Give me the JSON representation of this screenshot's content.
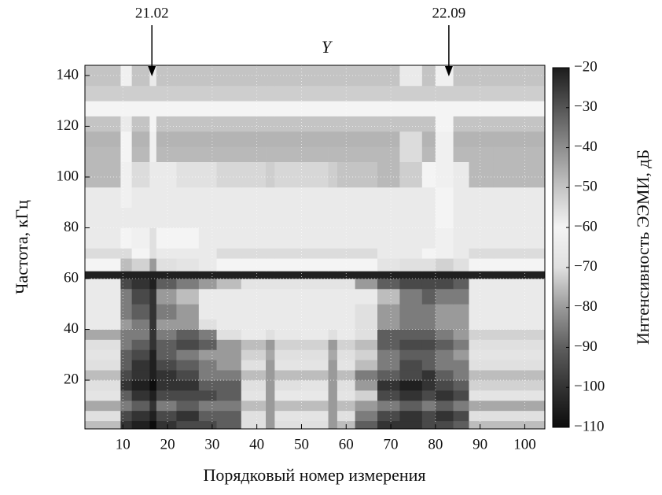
{
  "chart_data": {
    "type": "heatmap",
    "title": "Y",
    "x_label": "Порядковый номер измерения",
    "y_label": "Частота, кГц",
    "colorbar_label": "Интенсивность ЭЭМИ, дБ",
    "annotations": [
      {
        "text": "21.02",
        "x": 16.5
      },
      {
        "text": "22.09",
        "x": 83
      }
    ],
    "xlim": [
      1.5,
      104.5
    ],
    "xticks": [
      10,
      20,
      30,
      40,
      50,
      60,
      70,
      80,
      90,
      100
    ],
    "ylim": [
      0.8,
      144
    ],
    "yticks": [
      20,
      40,
      60,
      80,
      100,
      120,
      140
    ],
    "zlim": [
      -110,
      -20
    ],
    "zticks": [
      {
        "value": -20,
        "label": "−20"
      },
      {
        "value": -30,
        "label": "−30"
      },
      {
        "value": -40,
        "label": "−40"
      },
      {
        "value": -50,
        "label": "−50"
      },
      {
        "value": -60,
        "label": "−60"
      },
      {
        "value": -70,
        "label": "−70"
      },
      {
        "value": -80,
        "label": "−80"
      },
      {
        "value": -90,
        "label": "−90"
      },
      {
        "value": -100,
        "label": "−100"
      },
      {
        "value": -110,
        "label": "−110"
      }
    ],
    "colormap": [
      "#0d0d0d",
      "#333333",
      "#5e5e5e",
      "#9a9a9a",
      "#e0e0e0",
      "#f4f4f4",
      "#c4c4c4",
      "#8e8e8e",
      "#555555",
      "#1c1c1c"
    ],
    "grid": true,
    "x_edges": [
      1.5,
      9.5,
      12,
      16,
      17.5,
      22,
      27,
      31,
      36.5,
      42,
      44,
      50,
      56,
      58,
      62,
      67,
      72,
      77,
      80,
      84,
      87.5,
      93,
      104.5
    ],
    "y_edges": [
      0.8,
      4,
      8,
      12,
      16,
      20,
      24,
      28,
      32,
      36,
      40,
      44,
      50,
      56,
      60,
      63,
      68,
      72,
      80,
      88,
      96,
      106,
      112,
      118,
      124,
      130,
      136,
      144
    ],
    "z": [
      [
        -75,
        -100,
        -105,
        -110,
        -100,
        -95,
        -95,
        -90,
        -70,
        -80,
        -70,
        -70,
        -80,
        -75,
        -90,
        -100,
        -100,
        -95,
        -95,
        -90,
        -75,
        -75
      ],
      [
        -70,
        -95,
        -100,
        -105,
        -95,
        -100,
        -90,
        -90,
        -70,
        -80,
        -68,
        -68,
        -80,
        -70,
        -85,
        -95,
        -100,
        -95,
        -100,
        -95,
        -70,
        -70
      ],
      [
        -78,
        -85,
        -90,
        -100,
        -85,
        -90,
        -85,
        -85,
        -75,
        -80,
        -75,
        -75,
        -80,
        -75,
        -80,
        -85,
        -90,
        -85,
        -90,
        -85,
        -78,
        -78
      ],
      [
        -68,
        -90,
        -100,
        -105,
        -95,
        -95,
        -95,
        -90,
        -68,
        -80,
        -66,
        -66,
        -80,
        -68,
        -72,
        -95,
        -100,
        -95,
        -100,
        -95,
        -68,
        -68
      ],
      [
        -70,
        -100,
        -105,
        -110,
        -100,
        -100,
        -90,
        -90,
        -70,
        -80,
        -70,
        -68,
        -80,
        -70,
        -80,
        -100,
        -105,
        -100,
        -95,
        -90,
        -72,
        -72
      ],
      [
        -75,
        -95,
        -100,
        -105,
        -100,
        -95,
        -85,
        -85,
        -75,
        -80,
        -75,
        -75,
        -80,
        -75,
        -85,
        -90,
        -95,
        -100,
        -90,
        -85,
        -75,
        -75
      ],
      [
        -70,
        -90,
        -100,
        -105,
        -95,
        -90,
        -85,
        -80,
        -70,
        -80,
        -68,
        -68,
        -80,
        -68,
        -75,
        -85,
        -95,
        -90,
        -85,
        -85,
        -70,
        -70
      ],
      [
        -68,
        -90,
        -95,
        -105,
        -90,
        -85,
        -80,
        -80,
        -72,
        -78,
        -70,
        -70,
        -78,
        -70,
        -72,
        -85,
        -90,
        -90,
        -85,
        -80,
        -68,
        -68
      ],
      [
        -70,
        -85,
        -90,
        -100,
        -90,
        -95,
        -90,
        -80,
        -75,
        -80,
        -72,
        -72,
        -80,
        -72,
        -75,
        -90,
        -95,
        -95,
        -90,
        -85,
        -70,
        -70
      ],
      [
        -78,
        -85,
        -85,
        -100,
        -85,
        -90,
        -85,
        -70,
        -65,
        -70,
        -66,
        -65,
        -70,
        -65,
        -70,
        -90,
        -90,
        -90,
        -85,
        -80,
        -72,
        -72
      ],
      [
        -65,
        -80,
        -85,
        -100,
        -80,
        -80,
        -70,
        -65,
        -65,
        -65,
        -65,
        -65,
        -65,
        -65,
        -70,
        -80,
        -85,
        -85,
        -80,
        -80,
        -65,
        -65
      ],
      [
        -65,
        -85,
        -90,
        -100,
        -85,
        -80,
        -65,
        -65,
        -65,
        -65,
        -65,
        -65,
        -65,
        -65,
        -70,
        -80,
        -85,
        -85,
        -80,
        -80,
        -65,
        -65
      ],
      [
        -65,
        -85,
        -95,
        -100,
        -80,
        -75,
        -65,
        -65,
        -65,
        -65,
        -65,
        -65,
        -65,
        -65,
        -65,
        -75,
        -85,
        -90,
        -85,
        -85,
        -65,
        -65
      ],
      [
        -65,
        -95,
        -100,
        -105,
        -90,
        -85,
        -80,
        -75,
        -68,
        -68,
        -68,
        -68,
        -68,
        -68,
        -80,
        -90,
        -95,
        -95,
        -95,
        -90,
        -65,
        -65
      ],
      [
        -105,
        -105,
        -105,
        -105,
        -105,
        -105,
        -105,
        -105,
        -105,
        -105,
        -105,
        -105,
        -105,
        -105,
        -105,
        -105,
        -105,
        -105,
        -105,
        -105,
        -105,
        -105
      ],
      [
        -60,
        -75,
        -72,
        -80,
        -70,
        -68,
        -65,
        -60,
        -60,
        -60,
        -60,
        -60,
        -60,
        -60,
        -60,
        -68,
        -70,
        -70,
        -72,
        -70,
        -60,
        -60
      ],
      [
        -55,
        -55,
        -60,
        -70,
        -58,
        -58,
        -58,
        -55,
        -55,
        -55,
        -55,
        -55,
        -55,
        -55,
        -55,
        -58,
        -58,
        -60,
        -62,
        -58,
        -55,
        -55
      ],
      [
        -58,
        -60,
        -62,
        -70,
        -60,
        -60,
        -58,
        -58,
        -58,
        -58,
        -58,
        -58,
        -58,
        -58,
        -58,
        -58,
        -58,
        -58,
        -62,
        -58,
        -58,
        -58
      ],
      [
        -58,
        -58,
        -58,
        -65,
        -58,
        -58,
        -58,
        -58,
        -58,
        -58,
        -58,
        -58,
        -58,
        -58,
        -58,
        -58,
        -58,
        -58,
        -60,
        -58,
        -58,
        -58
      ],
      [
        -58,
        -62,
        -58,
        -65,
        -58,
        -58,
        -58,
        -58,
        -58,
        -58,
        -58,
        -58,
        -58,
        -58,
        -58,
        -58,
        -58,
        -58,
        -60,
        -58,
        -58,
        -58
      ],
      [
        -48,
        -62,
        -55,
        -65,
        -58,
        -56,
        -56,
        -54,
        -54,
        -52,
        -54,
        -54,
        -52,
        -50,
        -50,
        -48,
        -52,
        -60,
        -62,
        -58,
        -48,
        -48
      ],
      [
        -48,
        -60,
        -48,
        -62,
        -48,
        -48,
        -48,
        -48,
        -48,
        -48,
        -48,
        -48,
        -48,
        -48,
        -48,
        -48,
        -55,
        -48,
        -62,
        -48,
        -48,
        -48
      ],
      [
        -47,
        -60,
        -47,
        -62,
        -47,
        -47,
        -47,
        -47,
        -47,
        -47,
        -47,
        -47,
        -47,
        -47,
        -47,
        -47,
        -55,
        -47,
        -62,
        -47,
        -47,
        -47
      ],
      [
        -50,
        -58,
        -50,
        -60,
        -50,
        -50,
        -50,
        -50,
        -50,
        -50,
        -50,
        -50,
        -50,
        -50,
        -50,
        -50,
        -50,
        -50,
        -60,
        -50,
        -50,
        -50
      ],
      [
        -60,
        -60,
        -60,
        -60,
        -60,
        -60,
        -60,
        -60,
        -60,
        -60,
        -60,
        -60,
        -60,
        -60,
        -60,
        -60,
        -60,
        -60,
        -60,
        -60,
        -60,
        -60
      ],
      [
        -52,
        -52,
        -52,
        -52,
        -52,
        -52,
        -52,
        -52,
        -52,
        -52,
        -52,
        -52,
        -52,
        -52,
        -52,
        -52,
        -52,
        -52,
        -52,
        -52,
        -52,
        -52
      ],
      [
        -50,
        -62,
        -50,
        -65,
        -50,
        -50,
        -50,
        -50,
        -50,
        -50,
        -50,
        -50,
        -50,
        -50,
        -50,
        -50,
        -58,
        -50,
        -62,
        -50,
        -50,
        -50
      ]
    ]
  }
}
